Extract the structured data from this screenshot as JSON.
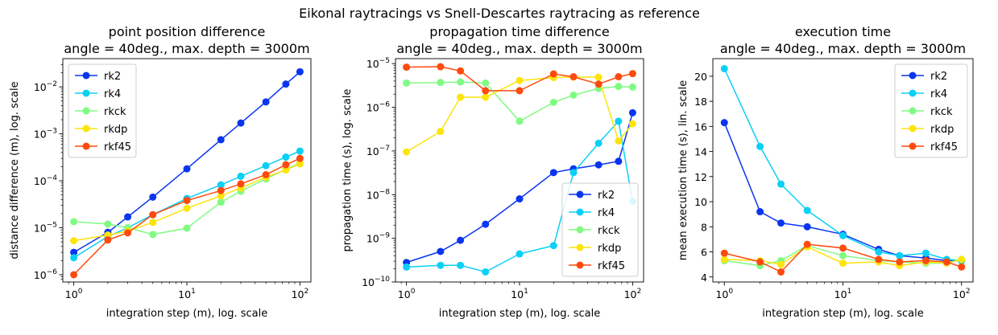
{
  "figure": {
    "suptitle": "Eikonal raytracings vs Snell-Descartes raytracing as reference"
  },
  "colors": {
    "rk2": "#0a35f0",
    "rk4": "#0ad0f5",
    "rkck": "#80fb82",
    "rkdp": "#fde40a",
    "rkf45": "#fe4a0d"
  },
  "chart_data": [
    {
      "type": "line",
      "title_line1": "point position difference",
      "title_line2": "angle = 40deg., max. depth = 3000m",
      "xlabel": "integration step (m), log. scale",
      "ylabel": "distance difference (m), log. scale",
      "xscale": "log",
      "yscale": "log",
      "xlim": [
        0.8,
        125
      ],
      "ylim": [
        7e-07,
        0.04
      ],
      "xticks": [
        {
          "v": 1,
          "b": "10",
          "e": "0"
        },
        {
          "v": 10,
          "b": "10",
          "e": "1"
        },
        {
          "v": 100,
          "b": "10",
          "e": "2"
        }
      ],
      "yticks": [
        {
          "v": 1e-06,
          "b": "10",
          "e": "−6"
        },
        {
          "v": 1e-05,
          "b": "10",
          "e": "−5"
        },
        {
          "v": 0.0001,
          "b": "10",
          "e": "−4"
        },
        {
          "v": 0.001,
          "b": "10",
          "e": "−3"
        },
        {
          "v": 0.01,
          "b": "10",
          "e": "−2"
        }
      ],
      "legend": "upper-left",
      "x": [
        1,
        2,
        3,
        5,
        10,
        20,
        30,
        50,
        75,
        100
      ],
      "series": [
        {
          "name": "rk2",
          "values": [
            3e-06,
            8e-06,
            1.7e-05,
            4.5e-05,
            0.00018,
            0.00075,
            0.0017,
            0.0048,
            0.0115,
            0.021
          ]
        },
        {
          "name": "rk4",
          "values": [
            2.3e-06,
            6.5e-06,
            1e-05,
            1.9e-05,
            4.2e-05,
            8.2e-05,
            0.000125,
            0.00021,
            0.00032,
            0.00043
          ]
        },
        {
          "name": "rkck",
          "values": [
            1.35e-05,
            1.2e-05,
            1e-05,
            7.2e-06,
            9.8e-06,
            3.5e-05,
            6e-05,
            0.00011,
            0.000175,
            0.00024
          ]
        },
        {
          "name": "rkdp",
          "values": [
            5.3e-06,
            7e-06,
            8.5e-06,
            1.3e-05,
            2.6e-05,
            4.8e-05,
            7e-05,
            0.00012,
            0.00017,
            0.00023
          ]
        },
        {
          "name": "rkf45",
          "values": [
            1e-06,
            5.5e-06,
            7.8e-06,
            1.9e-05,
            3.8e-05,
            6.2e-05,
            8.6e-05,
            0.000135,
            0.00022,
            0.0003
          ]
        }
      ]
    },
    {
      "type": "line",
      "title_line1": "propagation time difference",
      "title_line2": "angle = 40deg., max. depth = 3000m",
      "xlabel": "integration step (m), log. scale",
      "ylabel": "propagation time (s), log. scale",
      "xscale": "log",
      "yscale": "log",
      "xlim": [
        0.8,
        125
      ],
      "ylim": [
        1e-10,
        1.3e-05
      ],
      "xticks": [
        {
          "v": 1,
          "b": "10",
          "e": "0"
        },
        {
          "v": 10,
          "b": "10",
          "e": "1"
        },
        {
          "v": 100,
          "b": "10",
          "e": "2"
        }
      ],
      "yticks": [
        {
          "v": 1e-10,
          "b": "10",
          "e": "−10"
        },
        {
          "v": 1e-09,
          "b": "10",
          "e": "−9"
        },
        {
          "v": 1e-08,
          "b": "10",
          "e": "−8"
        },
        {
          "v": 1e-07,
          "b": "10",
          "e": "−7"
        },
        {
          "v": 1e-06,
          "b": "10",
          "e": "−6"
        },
        {
          "v": 1e-05,
          "b": "10",
          "e": "−5"
        }
      ],
      "legend": "lower-right",
      "x": [
        1,
        2,
        3,
        5,
        10,
        20,
        30,
        50,
        75,
        100
      ],
      "series": [
        {
          "name": "rk2",
          "values": [
            2.8e-10,
            5e-10,
            9e-10,
            2.1e-09,
            8e-09,
            3.2e-08,
            3.9e-08,
            4.8e-08,
            5.8e-08,
            7.5e-07
          ]
        },
        {
          "name": "rk4",
          "values": [
            2.2e-10,
            2.4e-10,
            2.4e-10,
            1.7e-10,
            4.4e-10,
            6.8e-10,
            3.2e-08,
            1.5e-07,
            4.8e-07,
            7e-09
          ]
        },
        {
          "name": "rkck",
          "values": [
            3.6e-06,
            3.7e-06,
            3.8e-06,
            3.6e-06,
            4.8e-07,
            1.3e-06,
            1.9e-06,
            2.7e-06,
            3e-06,
            2.9e-06
          ]
        },
        {
          "name": "rkdp",
          "values": [
            9.5e-08,
            2.8e-07,
            1.7e-06,
            1.7e-06,
            4.1e-06,
            4.8e-06,
            4.9e-06,
            4.9e-06,
            1.7e-07,
            4.2e-07
          ]
        },
        {
          "name": "rkf45",
          "values": [
            8.3e-06,
            8.5e-06,
            6.8e-06,
            2.4e-06,
            2.4e-06,
            5.8e-06,
            5e-06,
            3.4e-06,
            5e-06,
            5.9e-06
          ]
        }
      ]
    },
    {
      "type": "line",
      "title_line1": "execution time",
      "title_line2": "angle = 40deg., max. depth = 3000m",
      "xlabel": "integration step (m), log. scale",
      "ylabel": "mean execution time (s), lin. scale",
      "xscale": "log",
      "yscale": "linear",
      "xlim": [
        0.8,
        125
      ],
      "ylim": [
        3.6,
        21.4
      ],
      "xticks": [
        {
          "v": 1,
          "b": "10",
          "e": "0"
        },
        {
          "v": 10,
          "b": "10",
          "e": "1"
        },
        {
          "v": 100,
          "b": "10",
          "e": "2"
        }
      ],
      "yticks": [
        {
          "v": 4,
          "t": "4"
        },
        {
          "v": 6,
          "t": "6"
        },
        {
          "v": 8,
          "t": "8"
        },
        {
          "v": 10,
          "t": "10"
        },
        {
          "v": 12,
          "t": "12"
        },
        {
          "v": 14,
          "t": "14"
        },
        {
          "v": 16,
          "t": "16"
        },
        {
          "v": 18,
          "t": "18"
        },
        {
          "v": 20,
          "t": "20"
        }
      ],
      "legend": "upper-right",
      "x": [
        1,
        2,
        3,
        5,
        10,
        20,
        30,
        50,
        75,
        100
      ],
      "series": [
        {
          "name": "rk2",
          "values": [
            16.3,
            9.2,
            8.3,
            8.0,
            7.4,
            6.2,
            5.7,
            5.5,
            5.3,
            5.3
          ]
        },
        {
          "name": "rk4",
          "values": [
            20.6,
            14.4,
            11.4,
            9.3,
            7.3,
            6.0,
            5.7,
            5.9,
            5.4,
            5.3
          ]
        },
        {
          "name": "rkck",
          "values": [
            5.3,
            4.9,
            5.3,
            6.5,
            5.7,
            5.3,
            5.2,
            5.1,
            5.1,
            5.4
          ]
        },
        {
          "name": "rkdp",
          "values": [
            5.4,
            5.3,
            5.0,
            6.4,
            5.1,
            5.2,
            4.9,
            5.2,
            5.1,
            5.4
          ]
        },
        {
          "name": "rkf45",
          "values": [
            5.9,
            5.2,
            4.4,
            6.6,
            6.3,
            5.4,
            5.2,
            5.3,
            5.2,
            4.8
          ]
        }
      ]
    }
  ]
}
